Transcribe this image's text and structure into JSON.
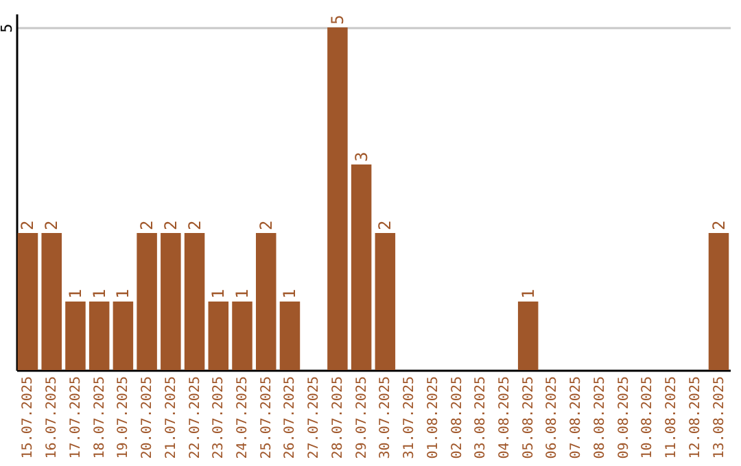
{
  "chart_data": {
    "type": "bar",
    "categories": [
      "15.07.2025",
      "16.07.2025",
      "17.07.2025",
      "18.07.2025",
      "19.07.2025",
      "20.07.2025",
      "21.07.2025",
      "22.07.2025",
      "23.07.2025",
      "24.07.2025",
      "25.07.2025",
      "26.07.2025",
      "27.07.2025",
      "28.07.2025",
      "29.07.2025",
      "30.07.2025",
      "31.07.2025",
      "01.08.2025",
      "02.08.2025",
      "03.08.2025",
      "04.08.2025",
      "05.08.2025",
      "06.08.2025",
      "07.08.2025",
      "08.08.2025",
      "09.08.2025",
      "10.08.2025",
      "11.08.2025",
      "12.08.2025",
      "13.08.2025"
    ],
    "values": [
      2,
      2,
      1,
      1,
      1,
      2,
      2,
      2,
      1,
      1,
      2,
      1,
      0,
      5,
      3,
      2,
      0,
      0,
      0,
      0,
      0,
      1,
      0,
      0,
      0,
      0,
      0,
      0,
      0,
      2
    ],
    "value_labels": [
      "2",
      "2",
      "1",
      "1",
      "1",
      "2",
      "2",
      "2",
      "1",
      "1",
      "2",
      "1",
      null,
      "5",
      "3",
      "2",
      null,
      null,
      null,
      null,
      null,
      "1",
      null,
      null,
      null,
      null,
      null,
      null,
      null,
      "2"
    ],
    "color": "#a0572a",
    "ylim": [
      0,
      5.2
    ],
    "yticks": [
      5
    ],
    "grid": "y"
  }
}
